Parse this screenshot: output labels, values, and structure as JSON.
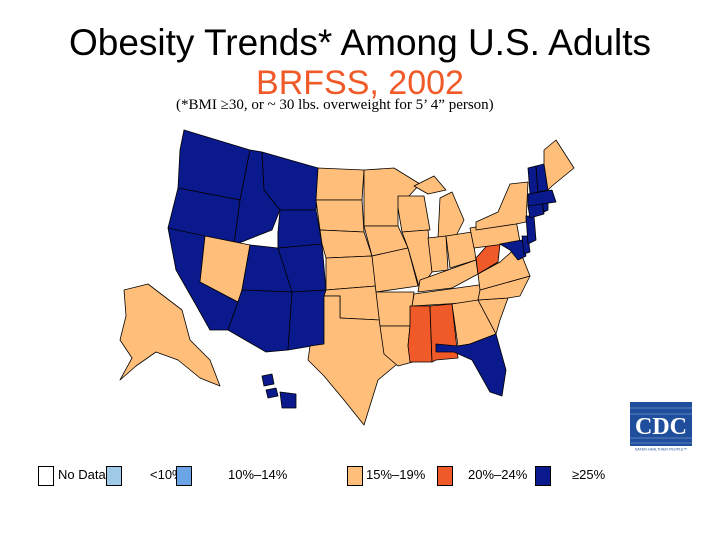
{
  "title": {
    "line1": "Obesity Trends* Among U.S. Adults",
    "line2": "BRFSS, 2002",
    "note": "(*BMI ≥30, or ~ 30 lbs. overweight for 5’ 4” person)"
  },
  "colors": {
    "no_data": "#ffffff",
    "lt10": "#9ecae8",
    "c10_14": "#6aa3e6",
    "c15_19": "#ffbe7a",
    "c20_24": "#f05a28",
    "c25plus": "#0a1a8c",
    "title2": "#f05a28"
  },
  "legend": [
    {
      "label": "No Data",
      "color_key": "no_data"
    },
    {
      "label": "<10%",
      "color_key": "lt10"
    },
    {
      "label": "10%–14%",
      "color_key": "c10_14"
    },
    {
      "label": "15%–19%",
      "color_key": "c15_19"
    },
    {
      "label": "20%–24%",
      "color_key": "c20_24"
    },
    {
      "label": "≥25%",
      "color_key": "c25plus"
    }
  ],
  "states": {
    "WA": "c25plus",
    "OR": "c25plus",
    "CA": "c25plus",
    "ID": "c25plus",
    "NV": "c15_19",
    "UT": "c25plus",
    "AZ": "c25plus",
    "MT": "c25plus",
    "WY": "c25plus",
    "CO": "c25plus",
    "NM": "c25plus",
    "ND": "c15_19",
    "SD": "c15_19",
    "NE": "c15_19",
    "KS": "c15_19",
    "OK": "c15_19",
    "TX": "c15_19",
    "MN": "c15_19",
    "IA": "c15_19",
    "MO": "c15_19",
    "AR": "c15_19",
    "LA": "c15_19",
    "WI": "c15_19",
    "IL": "c15_19",
    "MI": "c15_19",
    "IN": "c15_19",
    "OH": "c15_19",
    "KY": "c15_19",
    "TN": "c15_19",
    "MS": "c20_24",
    "AL": "c20_24",
    "GA": "c15_19",
    "FL": "c25plus",
    "SC": "c15_19",
    "NC": "c15_19",
    "VA": "c15_19",
    "WV": "c20_24",
    "PA": "c15_19",
    "NY": "c15_19",
    "ME": "c15_19",
    "VT": "c25plus",
    "NH": "c25plus",
    "MA": "c25plus",
    "CT": "c25plus",
    "RI": "c25plus",
    "NJ": "c25plus",
    "DE": "c25plus",
    "MD": "c25plus",
    "AK": "c15_19",
    "HI": "c25plus"
  },
  "logo": {
    "text": "CDC",
    "tagline": "SAFER·HEALTHIER·PEOPLE™"
  }
}
